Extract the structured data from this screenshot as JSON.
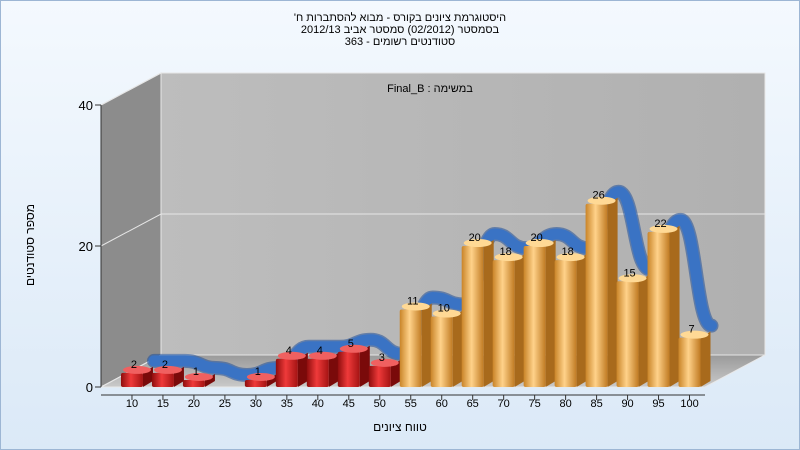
{
  "chart_data": {
    "type": "bar",
    "title_lines": [
      "היסטוגרמת ציונים בקורס - מבוא להסתברות ח'",
      "בסמסטר (02/2012) סמסטר אביב 2012/13",
      "סטודנטים רשומים - 363"
    ],
    "inner_label": "במשימה : Final_B",
    "xlabel": "טווח ציונים",
    "ylabel": "מספר סטודנטים",
    "x_ticks": [
      "10",
      "15",
      "20",
      "25",
      "30",
      "35",
      "40",
      "45",
      "50",
      "55",
      "60",
      "65",
      "70",
      "75",
      "80",
      "85",
      "90",
      "95",
      "100"
    ],
    "y_ticks": [
      "0",
      "20",
      "40"
    ],
    "ylim": [
      0,
      40
    ],
    "categories": [
      "10",
      "15",
      "20",
      "25",
      "30",
      "35",
      "40",
      "45",
      "50",
      "55",
      "60",
      "65",
      "70",
      "75",
      "80",
      "85",
      "90",
      "95",
      "100"
    ],
    "values": [
      2,
      2,
      1,
      0,
      1,
      4,
      4,
      5,
      3,
      11,
      10,
      20,
      18,
      20,
      18,
      26,
      15,
      22,
      7
    ],
    "bar_labels": [
      "2",
      "2",
      "1",
      "",
      "1",
      "4",
      "4",
      "5",
      "3",
      "11",
      "10",
      "20",
      "18",
      "20",
      "18",
      "26",
      "15",
      "22",
      "7"
    ],
    "colors": {
      "fail_bar": "#d41c1c",
      "pass_bar": "#e8a84a",
      "ribbon": "#3a73c4",
      "wall": "#b7b7b7",
      "side_wall": "#8c8c8c"
    },
    "fail_threshold_count": 9
  }
}
